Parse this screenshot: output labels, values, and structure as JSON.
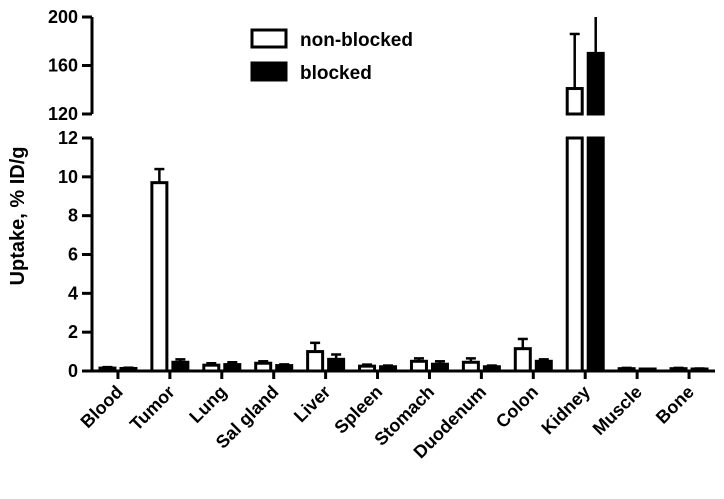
{
  "chart_data": {
    "type": "bar",
    "ylabel": "Uptake, % ID/g",
    "categories": [
      "Blood",
      "Tumor",
      "Lung",
      "Sal gland",
      "Liver",
      "Spleen",
      "Stomach",
      "Duodenum",
      "Colon",
      "Kidney",
      "Muscle",
      "Bone"
    ],
    "series": [
      {
        "name": "non-blocked",
        "fill": "#ffffff",
        "values": [
          0.15,
          9.7,
          0.3,
          0.4,
          1.0,
          0.25,
          0.5,
          0.45,
          1.15,
          141,
          0.12,
          0.12
        ],
        "errors": [
          0.05,
          0.7,
          0.1,
          0.1,
          0.45,
          0.08,
          0.15,
          0.2,
          0.5,
          45,
          0.04,
          0.04
        ]
      },
      {
        "name": "blocked",
        "fill": "#000000",
        "values": [
          0.13,
          0.45,
          0.33,
          0.28,
          0.6,
          0.22,
          0.35,
          0.22,
          0.5,
          170,
          0.06,
          0.1
        ],
        "errors": [
          0.04,
          0.15,
          0.12,
          0.06,
          0.25,
          0.06,
          0.15,
          0.06,
          0.1,
          50,
          0.02,
          0.03
        ]
      }
    ],
    "y_lower": {
      "range": [
        0,
        12
      ],
      "ticks": [
        0,
        2,
        4,
        6,
        8,
        10,
        12
      ]
    },
    "y_upper": {
      "range": [
        120,
        200
      ],
      "ticks": [
        120,
        160,
        200
      ]
    },
    "axis_break": true,
    "legend_position": "top-center",
    "grid": false
  }
}
